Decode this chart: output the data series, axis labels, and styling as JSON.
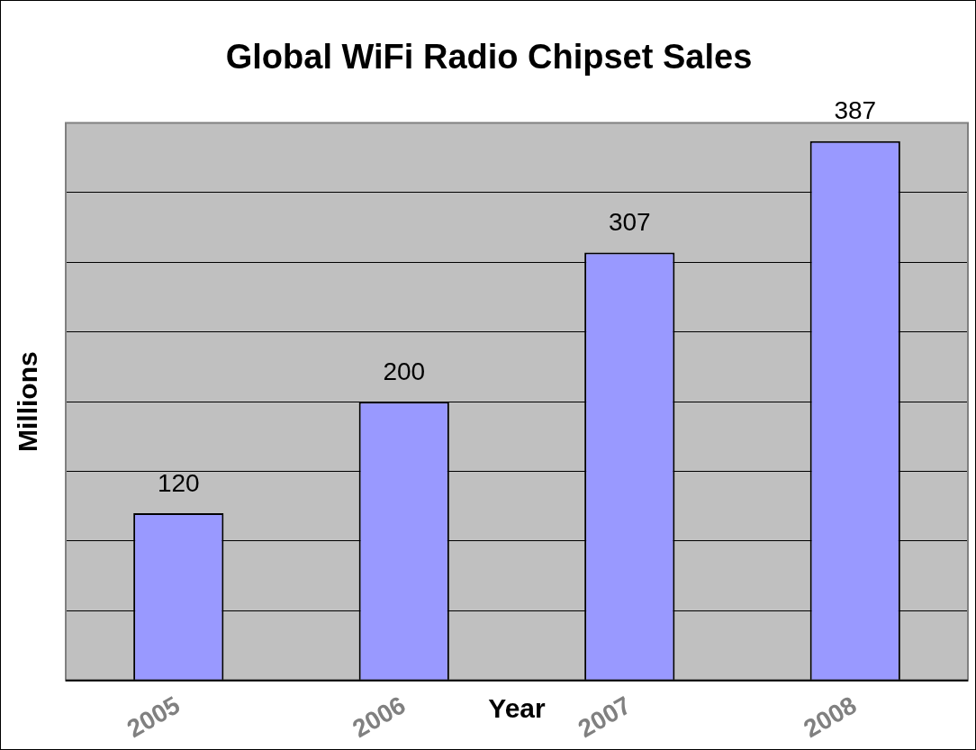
{
  "chart_data": {
    "type": "bar",
    "title": "Global WiFi Radio Chipset Sales",
    "xlabel": "Year",
    "ylabel": "Millions",
    "categories": [
      "2005",
      "2006",
      "2007",
      "2008"
    ],
    "values": [
      120,
      200,
      307,
      387
    ],
    "color": "#9999ff",
    "tick_labels": "x",
    "grid": "y",
    "data_labels": true,
    "legend": false
  }
}
